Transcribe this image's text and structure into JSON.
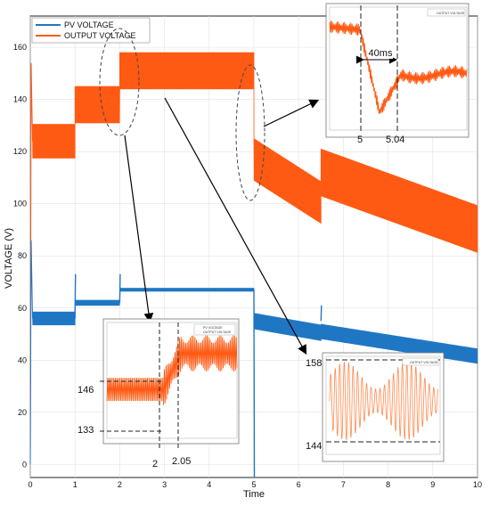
{
  "chart_data": {
    "type": "line",
    "title": "",
    "xlabel": "Time",
    "ylabel": "VOLTAGE (V)",
    "xlim": [
      0,
      10
    ],
    "ylim": [
      -5,
      172
    ],
    "xticks": [
      "0",
      "1",
      "2",
      "3",
      "4",
      "5",
      "6",
      "7",
      "8",
      "9",
      "10"
    ],
    "yticks": [
      "0",
      "20",
      "40",
      "60",
      "80",
      "100",
      "120",
      "140",
      "160"
    ],
    "grid": true,
    "legend": "top-left",
    "series": [
      {
        "name": "PV VOLTAGE",
        "color": "#1f77c4",
        "segments": [
          {
            "x0": 0.05,
            "x1": 1.0,
            "mid": 56,
            "amp": 2.5,
            "slope": 0
          },
          {
            "x0": 1.0,
            "x1": 2.0,
            "mid": 62,
            "amp": 1.0,
            "slope": 0
          },
          {
            "x0": 2.0,
            "x1": 5.0,
            "mid": 67,
            "amp": 0.6,
            "slope": 0
          },
          {
            "x0": 5.0,
            "x1": 6.5,
            "mid": 55,
            "amp": 3.0,
            "slope": -3.0
          },
          {
            "x0": 6.5,
            "x1": 10.0,
            "mid": 51,
            "amp": 2.8,
            "slope": -2.7
          }
        ],
        "spikes": [
          {
            "x": 1.0,
            "y": 73
          },
          {
            "x": 2.0,
            "y": 73
          },
          {
            "x": 5.0,
            "y": -5
          },
          {
            "x": 6.5,
            "y": 61
          }
        ]
      },
      {
        "name": "OUTPUT VOLTAGE",
        "color": "#ff5a14",
        "segments": [
          {
            "x0": 0.05,
            "x1": 1.0,
            "mid": 124,
            "amp": 6.5,
            "slope": 0
          },
          {
            "x0": 1.0,
            "x1": 2.0,
            "mid": 138,
            "amp": 7.0,
            "slope": 0
          },
          {
            "x0": 2.0,
            "x1": 5.0,
            "mid": 151,
            "amp": 7.0,
            "slope": 0
          },
          {
            "x0": 5.0,
            "x1": 6.5,
            "mid": 117,
            "amp": 8.0,
            "slope": -11.0
          },
          {
            "x0": 6.5,
            "x1": 10.0,
            "mid": 112,
            "amp": 9.0,
            "slope": -6.2
          }
        ]
      }
    ],
    "insets": [
      {
        "id": "zoom-2s",
        "legend": [
          "PV VOLTAGE",
          "OUTPUT VOLTAGE"
        ],
        "y_markers": [
          "146",
          "133"
        ],
        "x_markers": [
          "2",
          "2.05"
        ]
      },
      {
        "id": "zoom-5s",
        "legend": [
          "OUTPUT VOLTAGE"
        ],
        "x_markers": [
          "5",
          "5.04"
        ],
        "annotation": "40ms"
      },
      {
        "id": "zoom-ripple",
        "legend": [
          "OUTPUT VOLTAGE"
        ],
        "y_markers": [
          "158",
          "144"
        ]
      }
    ]
  }
}
